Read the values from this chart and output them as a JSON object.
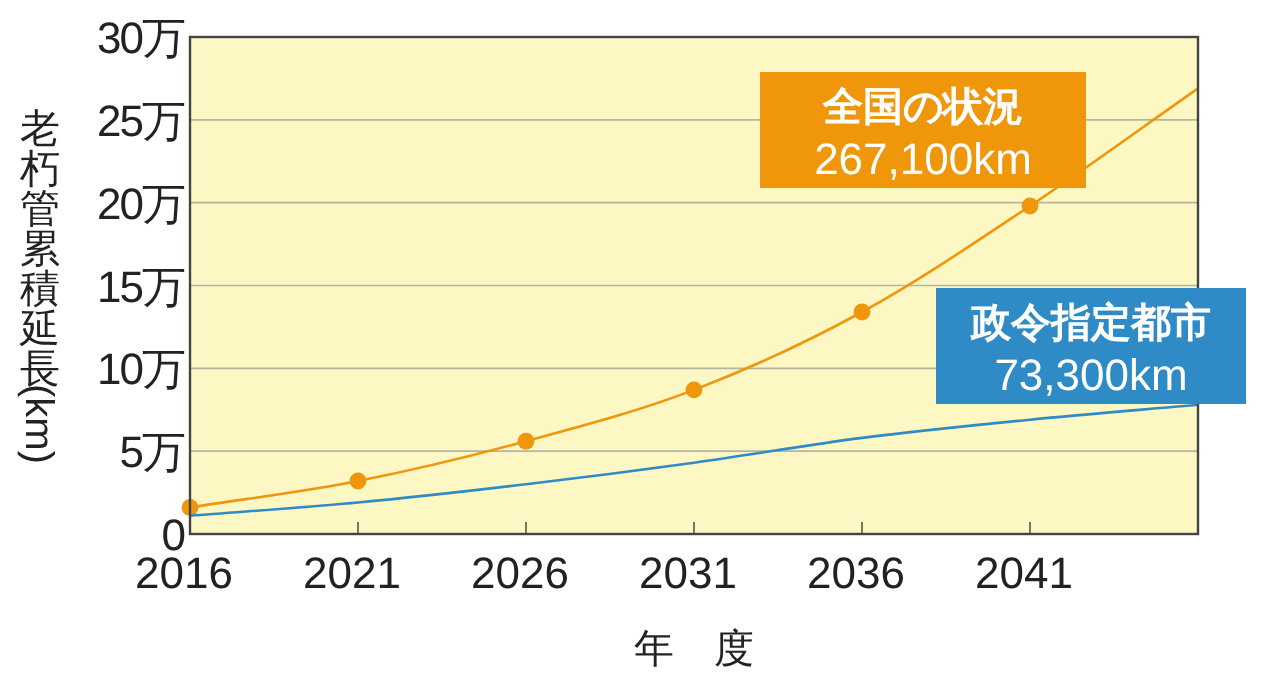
{
  "chart_data": {
    "type": "line",
    "xlabel": "年　度",
    "ylabel": "老朽管累積延長(km)",
    "x": [
      2016,
      2021,
      2026,
      2031,
      2036,
      2041,
      2046
    ],
    "xlim": [
      2016,
      2046
    ],
    "xticks": [
      2016,
      2021,
      2026,
      2031,
      2036,
      2041
    ],
    "ylim": [
      0,
      30
    ],
    "yticks": [
      0,
      {
        "value": 5,
        "label": "5万"
      },
      {
        "value": 10,
        "label": "10万"
      },
      {
        "value": 15,
        "label": "15万"
      },
      {
        "value": 20,
        "label": "20万"
      },
      {
        "value": 25,
        "label": "25万"
      },
      {
        "value": 30,
        "label": "30万"
      }
    ],
    "grid": "y",
    "series": [
      {
        "name": "全国の状況",
        "color": "#f0960a",
        "values": [
          1.6,
          3.2,
          5.6,
          8.7,
          13.4,
          19.8,
          26.9
        ]
      },
      {
        "type": "scatter",
        "color": "#f0960a",
        "marker": "circle",
        "x": [
          2016,
          2021,
          2026,
          2031,
          2036,
          2041
        ],
        "values": [
          1.6,
          3.2,
          5.6,
          8.7,
          13.4,
          19.8
        ]
      },
      {
        "name": "政令指定都市",
        "color": "#2f8bc6",
        "values": [
          1.1,
          1.9,
          3.0,
          4.3,
          5.8,
          6.9,
          7.8
        ]
      }
    ],
    "annotations": [
      "267,100km",
      "73,300km"
    ]
  }
}
